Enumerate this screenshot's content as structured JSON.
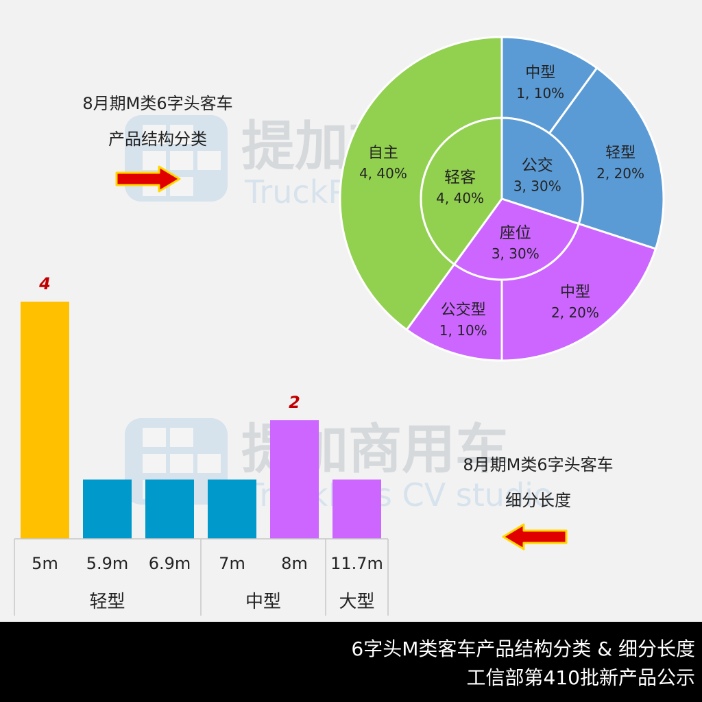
{
  "watermark": {
    "cn": "提加商用车",
    "en": "TruckPlus CV studio"
  },
  "pie_caption": {
    "line1": "8月期M类6字头客车",
    "line2": "产品结构分类"
  },
  "bar_caption": {
    "line1": "8月期M类6字头客车",
    "line2": "细分长度"
  },
  "footer": {
    "line1": "6字头M类客车产品结构分类 & 细分长度",
    "line2": "工信部第410批新产品公示"
  },
  "colors": {
    "green": "#92d050",
    "blue": "#5b9bd5",
    "purple": "#cc66ff",
    "yellow": "#ffc000",
    "teal": "#0099cc",
    "label_red": "#c00000",
    "arrow_red": "#e00000",
    "arrow_edge": "#ffd800"
  },
  "chart_data": [
    {
      "type": "pie",
      "inner": [
        {
          "name": "轻客",
          "label": "4, 40%",
          "value": 4,
          "color": "#92d050"
        },
        {
          "name": "公交",
          "label": "3, 30%",
          "value": 3,
          "color": "#5b9bd5"
        },
        {
          "name": "座位",
          "label": "3, 30%",
          "value": 3,
          "color": "#cc66ff"
        }
      ],
      "outer": [
        {
          "name": "中型",
          "label": "1, 10%",
          "value": 1,
          "color": "#5b9bd5"
        },
        {
          "name": "轻型",
          "label": "2, 20%",
          "value": 2,
          "color": "#5b9bd5"
        },
        {
          "name": "中型",
          "label": "2, 20%",
          "value": 2,
          "color": "#cc66ff"
        },
        {
          "name": "公交型",
          "label": "1, 10%",
          "value": 1,
          "color": "#cc66ff"
        },
        {
          "name": "自主",
          "label": "4, 40%",
          "value": 4,
          "color": "#92d050"
        }
      ]
    },
    {
      "type": "bar",
      "categories": [
        "5m",
        "5.9m",
        "6.9m",
        "7m",
        "8m",
        "11.7m"
      ],
      "values": [
        4,
        1,
        1,
        1,
        2,
        1
      ],
      "colors": [
        "#ffc000",
        "#0099cc",
        "#0099cc",
        "#0099cc",
        "#cc66ff",
        "#cc66ff"
      ],
      "data_labels": [
        "4",
        "",
        "",
        "",
        "2",
        ""
      ],
      "groups": [
        {
          "label": "轻型",
          "span": 3
        },
        {
          "label": "中型",
          "span": 2
        },
        {
          "label": "大型",
          "span": 1
        }
      ]
    }
  ]
}
